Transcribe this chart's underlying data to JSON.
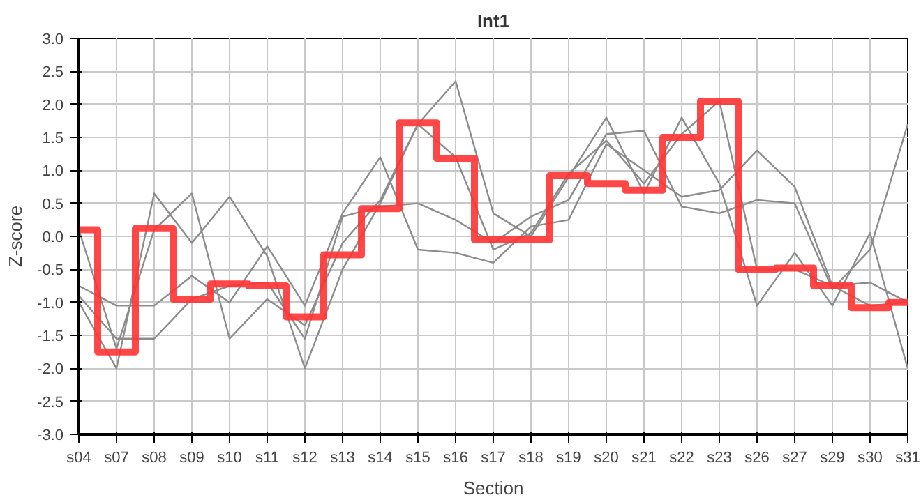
{
  "chart_data": {
    "type": "line",
    "title": "Int1",
    "xlabel": "Section",
    "ylabel": "Z-score",
    "categories": [
      "s04",
      "s07",
      "s08",
      "s09",
      "s10",
      "s11",
      "s12",
      "s13",
      "s14",
      "s15",
      "s16",
      "s17",
      "s18",
      "s19",
      "s20",
      "s21",
      "s22",
      "s23",
      "s26",
      "s27",
      "s29",
      "s30",
      "s31"
    ],
    "ylim": [
      -3,
      3
    ],
    "yticks": [
      {
        "value": -3,
        "label": "-3.0"
      },
      {
        "value": -2.5,
        "label": "-2.5"
      },
      {
        "value": -2,
        "label": "-2.0"
      },
      {
        "value": -1.5,
        "label": "-1.5"
      },
      {
        "value": -1,
        "label": "-1.0"
      },
      {
        "value": -0.5,
        "label": "-0.5"
      },
      {
        "value": 0,
        "label": "0.0"
      },
      {
        "value": 0.5,
        "label": "0.5"
      },
      {
        "value": 1,
        "label": "1.0"
      },
      {
        "value": 1.5,
        "label": "1.5"
      },
      {
        "value": 2,
        "label": "2.0"
      },
      {
        "value": 2.5,
        "label": "2.5"
      },
      {
        "value": 3,
        "label": "3.0"
      }
    ],
    "grid": true,
    "series": [
      {
        "color": "#8c8c8c",
        "values": [
          -0.75,
          -1.05,
          -1.05,
          -0.6,
          -1.0,
          -0.15,
          -1.05,
          0.35,
          1.2,
          -0.2,
          -0.25,
          -0.4,
          0.15,
          0.25,
          1.4,
          1.0,
          0.6,
          0.7,
          1.3,
          0.75,
          -0.75,
          -0.7,
          -1.0
        ]
      },
      {
        "color": "#8c8c8c",
        "values": [
          -0.9,
          -1.55,
          -1.55,
          -0.95,
          -0.75,
          -0.7,
          -1.55,
          0.3,
          0.45,
          0.5,
          0.25,
          -0.1,
          0.3,
          0.55,
          1.55,
          1.6,
          0.45,
          0.35,
          0.55,
          0.5,
          -0.8,
          -0.2,
          1.7
        ]
      },
      {
        "color": "#8c8c8c",
        "values": [
          -1.0,
          -2.0,
          0.65,
          -0.1,
          0.6,
          -0.3,
          -2.0,
          -0.5,
          0.5,
          1.7,
          2.35,
          0.35,
          0.0,
          0.9,
          1.8,
          0.65,
          1.8,
          0.8,
          -1.05,
          -0.25,
          -1.05,
          0.05,
          -2.0
        ]
      },
      {
        "color": "#8c8c8c",
        "values": [
          0.1,
          -1.7,
          0.1,
          0.65,
          -1.55,
          -0.95,
          -1.35,
          -0.1,
          0.55,
          1.7,
          1.2,
          -0.2,
          0.05,
          0.95,
          1.45,
          0.8,
          1.55,
          2.05,
          -0.5,
          -0.5,
          -0.75,
          -1.05,
          -1.0
        ]
      },
      {
        "type": "step",
        "color": "#ff3333",
        "values": [
          0.1,
          -1.75,
          0.12,
          -0.95,
          -0.72,
          -0.75,
          -1.22,
          -0.28,
          0.42,
          1.72,
          1.18,
          -0.05,
          -0.05,
          0.92,
          0.8,
          0.7,
          1.5,
          2.05,
          -0.5,
          -0.48,
          -0.75,
          -1.08,
          -1.0
        ]
      }
    ]
  }
}
